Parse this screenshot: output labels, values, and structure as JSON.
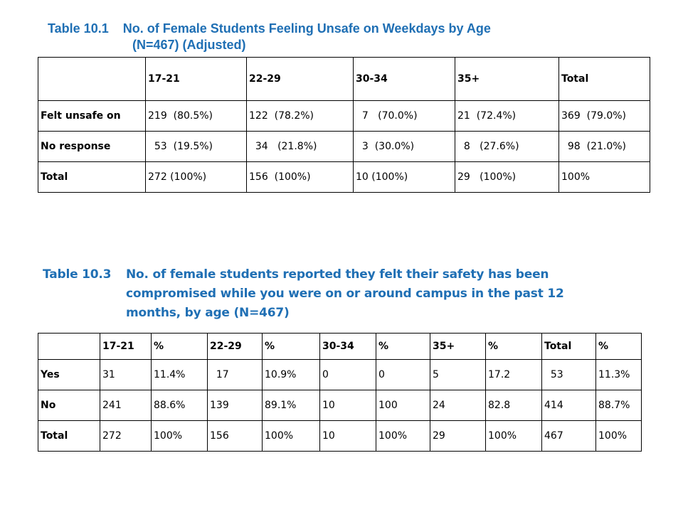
{
  "table1": {
    "title_line1": "Table 10.1    No. of Female Students Feeling Unsafe on Weekdays by Age",
    "title_line2": "(N=467) (Adjusted)",
    "headers": [
      "",
      "17-21",
      "22-29",
      "30-34",
      "35+",
      "Total"
    ],
    "rows": [
      [
        "Felt unsafe on",
        "219  (80.5%)",
        "122  (78.2%)",
        "  7   (70.0%)",
        "21  (72.4%)",
        "369  (79.0%)"
      ],
      [
        "No response",
        "  53  (19.5%)",
        "  34   (21.8%)",
        "  3  (30.0%)",
        "  8   (27.6%)",
        "  98  (21.0%)"
      ],
      [
        "Total",
        "272 (100%)",
        "156  (100%)",
        "10 (100%)",
        "29   (100%)",
        "100%"
      ]
    ]
  },
  "table3": {
    "title_label": "Table 10.3",
    "title_line1": "No. of female students reported they felt their safety has been",
    "title_line2": "compromised while you were on or around campus in the past 12",
    "title_line3": "months, by age (N=467)",
    "headers": [
      "",
      "17-21",
      "%",
      "22-29",
      "%",
      "30-34",
      "%",
      "35+",
      "%",
      "Total",
      "%"
    ],
    "rows": [
      [
        "Yes",
        "31",
        "11.4%",
        "  17",
        "10.9%",
        "0",
        "0",
        "5",
        "17.2",
        "  53",
        "11.3%"
      ],
      [
        "No",
        "241",
        "88.6%",
        "139",
        "89.1%",
        "10",
        "100",
        "24",
        "82.8",
        "414",
        "88.7%"
      ],
      [
        "Total",
        "272",
        "100%",
        "156",
        "100%",
        "10",
        "100%",
        "29",
        "100%",
        "467",
        "100%"
      ]
    ]
  }
}
